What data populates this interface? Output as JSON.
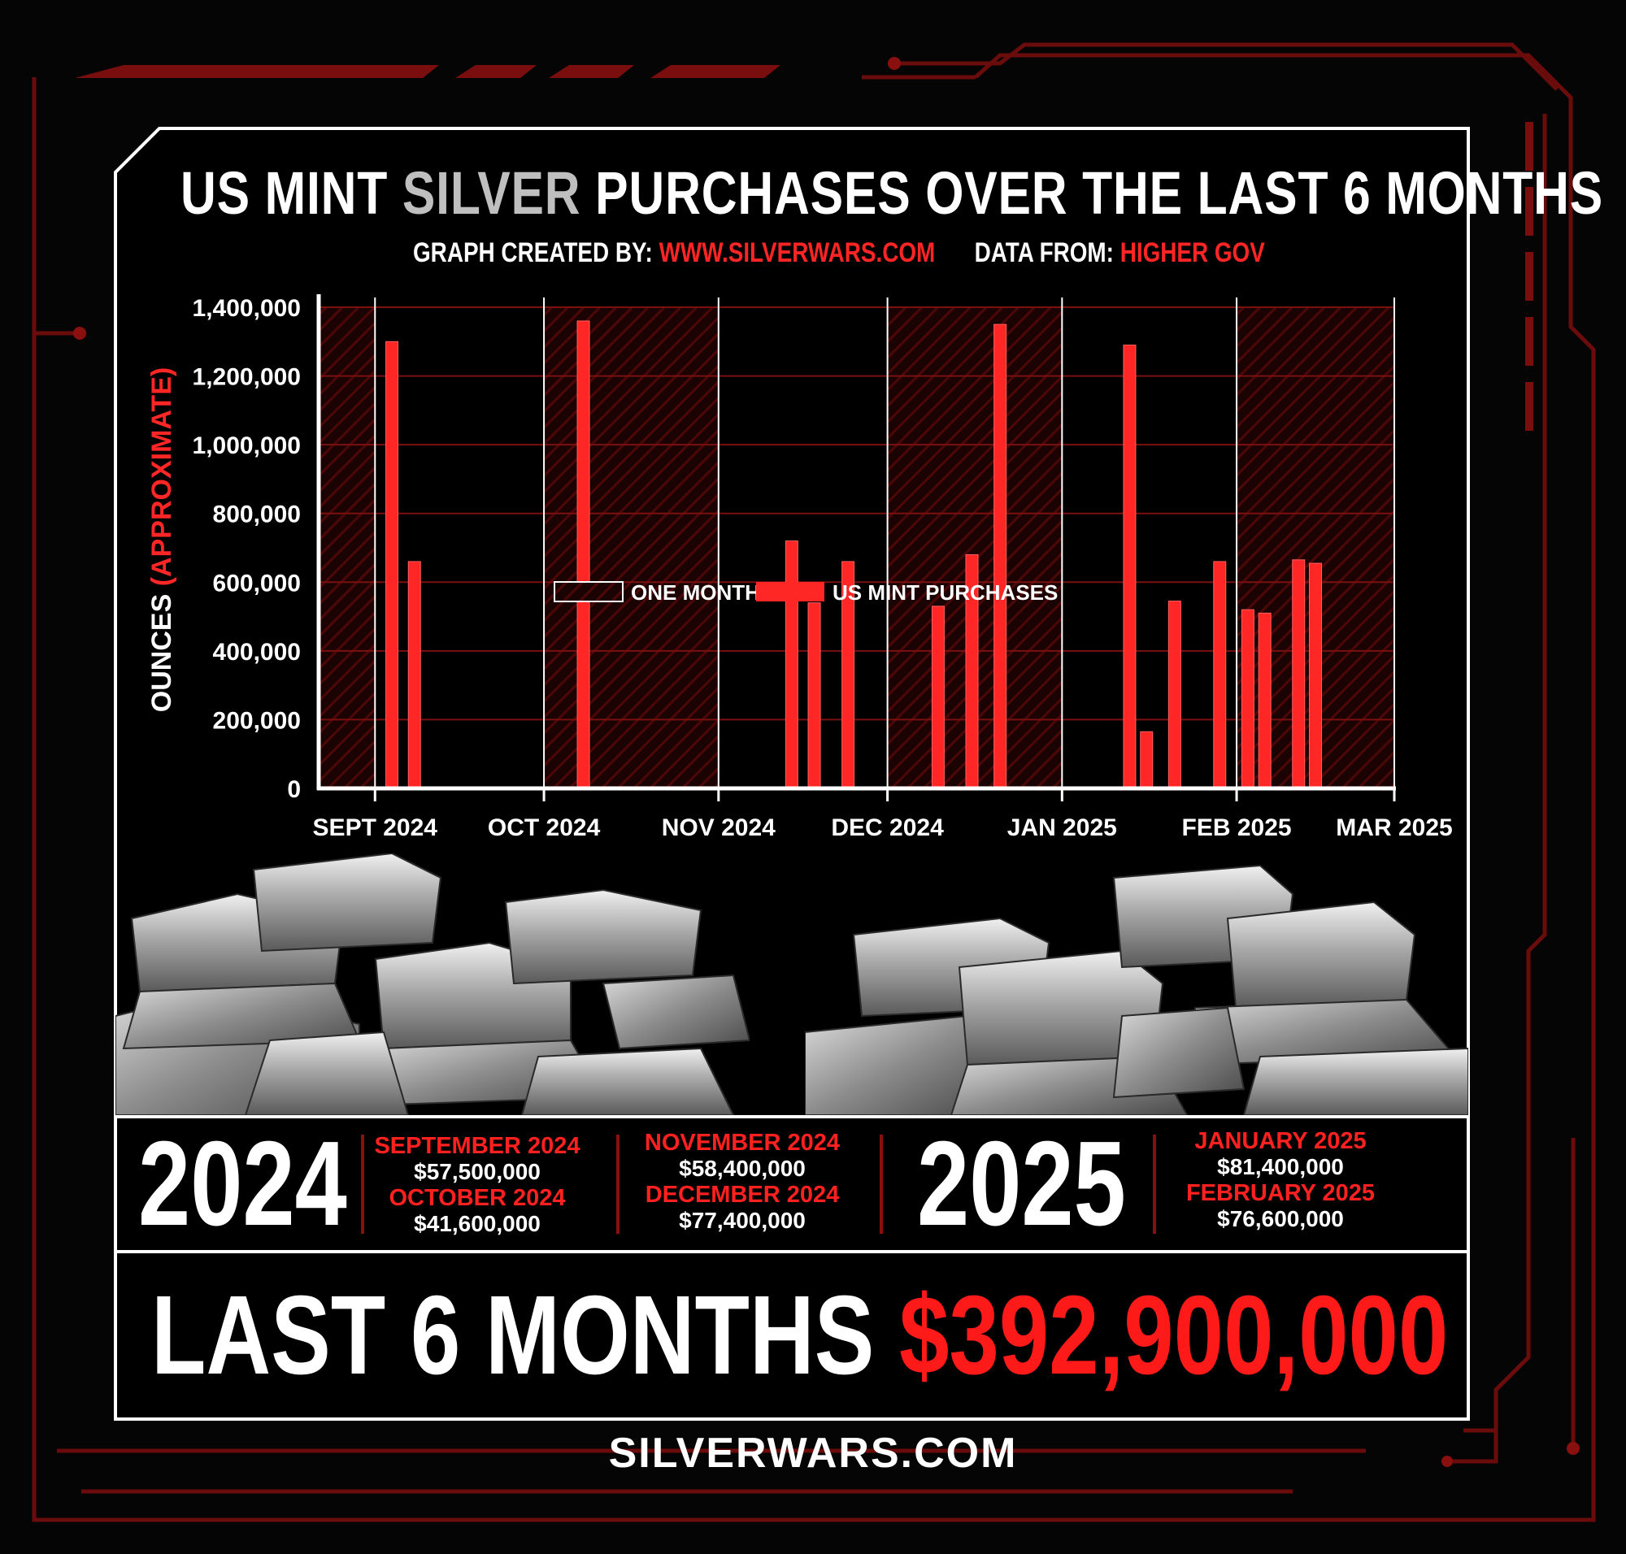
{
  "header": {
    "title_part1": "US MINT ",
    "title_highlight": "SILVER",
    "title_part2": " PURCHASES OVER THE LAST 6 MONTHS",
    "credit_label": "GRAPH CREATED BY:",
    "credit_value": "WWW.SILVERWARS.COM",
    "data_label": "DATA FROM:",
    "data_value": "HIGHER GOV"
  },
  "chart_data": {
    "type": "bar",
    "title": "US MINT SILVER PURCHASES OVER THE LAST 6 MONTHS",
    "ylabel": "OUNCES",
    "ylabel_note": "(APPROXIMATE)",
    "ylim": [
      0,
      1400000
    ],
    "yticks": [
      0,
      200000,
      400000,
      600000,
      800000,
      1000000,
      1200000,
      1400000
    ],
    "ytick_labels": [
      "0",
      "200,000",
      "400,000",
      "600,000",
      "800,000",
      "1,000,000",
      "1,200,000",
      "1,400,000"
    ],
    "xlim": [
      "2024-08-22",
      "2025-03-01"
    ],
    "xticks": [
      {
        "date": "2024-09-01",
        "label": "SEPT 2024"
      },
      {
        "date": "2024-10-01",
        "label": "OCT 2024"
      },
      {
        "date": "2024-11-01",
        "label": "NOV 2024"
      },
      {
        "date": "2024-12-01",
        "label": "DEC 2024"
      },
      {
        "date": "2025-01-01",
        "label": "JAN 2025"
      },
      {
        "date": "2025-02-01",
        "label": "FEB 2025"
      },
      {
        "date": "2025-03-01",
        "label": "MAR 2025"
      }
    ],
    "shaded_months": [
      {
        "from": "2024-08-22",
        "to": "2024-09-01"
      },
      {
        "from": "2024-10-01",
        "to": "2024-11-01"
      },
      {
        "from": "2024-12-01",
        "to": "2025-01-01"
      },
      {
        "from": "2025-02-01",
        "to": "2025-03-01"
      }
    ],
    "series": [
      {
        "name": "US MINT PURCHASES",
        "points": [
          {
            "date": "2024-09-04",
            "value": 1300000
          },
          {
            "date": "2024-09-08",
            "value": 660000
          },
          {
            "date": "2024-10-08",
            "value": 1360000
          },
          {
            "date": "2024-11-14",
            "value": 720000
          },
          {
            "date": "2024-11-18",
            "value": 540000
          },
          {
            "date": "2024-11-24",
            "value": 660000
          },
          {
            "date": "2024-12-10",
            "value": 530000
          },
          {
            "date": "2024-12-16",
            "value": 680000
          },
          {
            "date": "2024-12-21",
            "value": 1350000
          },
          {
            "date": "2025-01-13",
            "value": 1290000
          },
          {
            "date": "2025-01-16",
            "value": 165000
          },
          {
            "date": "2025-01-21",
            "value": 545000
          },
          {
            "date": "2025-01-29",
            "value": 660000
          },
          {
            "date": "2025-02-03",
            "value": 520000
          },
          {
            "date": "2025-02-06",
            "value": 510000
          },
          {
            "date": "2025-02-12",
            "value": 665000
          },
          {
            "date": "2025-02-15",
            "value": 655000
          }
        ]
      }
    ],
    "legend": [
      "ONE MONTH",
      "US MINT PURCHASES"
    ],
    "legend_position": "bottom-center"
  },
  "summary": {
    "year_2024": "2024",
    "year_2025": "2025",
    "months": [
      {
        "month": "SEPTEMBER 2024",
        "value": "$57,500,000"
      },
      {
        "month": "OCTOBER 2024",
        "value": "$41,600,000"
      },
      {
        "month": "NOVEMBER 2024",
        "value": "$58,400,000"
      },
      {
        "month": "DECEMBER 2024",
        "value": "$77,400,000"
      },
      {
        "month": "JANUARY 2025",
        "value": "$81,400,000"
      },
      {
        "month": "FEBRUARY 2025",
        "value": "$76,600,000"
      }
    ],
    "total_label": "LAST 6 MONTHS ",
    "total_value": "$392,900,000"
  },
  "footer": {
    "brand": "SILVERWARS.COM"
  },
  "colors": {
    "accent": "#ff2020",
    "frame": "#8a1010",
    "silver": "#bfbfbf",
    "background": "#050505"
  }
}
